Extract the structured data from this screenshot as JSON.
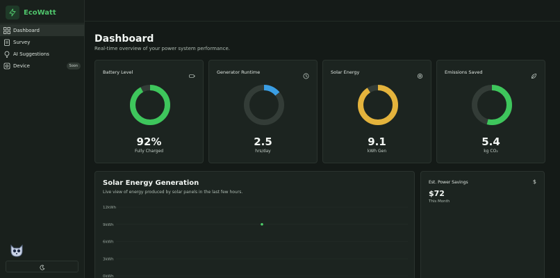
{
  "app": {
    "name": "EcoWatt"
  },
  "sidebar": {
    "items": [
      {
        "label": "Dashboard",
        "icon": "dashboard-grid-icon",
        "active": true
      },
      {
        "label": "Survey",
        "icon": "clipboard-icon",
        "active": false
      },
      {
        "label": "AI Suggestions",
        "icon": "lightbulb-icon",
        "active": false
      },
      {
        "label": "Device",
        "icon": "device-icon",
        "active": false,
        "badge": "Soon"
      }
    ],
    "theme_toggle_icon": "moon-icon"
  },
  "header": {
    "title": "Dashboard",
    "subtitle": "Real-time overview of your power system performance."
  },
  "stats": [
    {
      "title": "Battery Level",
      "icon": "battery-icon",
      "value": "92%",
      "unit": "Fully Charged",
      "fraction": 0.92,
      "color": "#3ec65c"
    },
    {
      "title": "Generator Runtime",
      "icon": "clock-icon",
      "value": "2.5",
      "unit": "hrs/day",
      "fraction": 0.14,
      "color": "#3a9ee4"
    },
    {
      "title": "Solar Energy",
      "icon": "sun-icon",
      "value": "9.1",
      "unit": "kWh Gen",
      "fraction": 0.91,
      "color": "#e4b33c"
    },
    {
      "title": "Emissions Saved",
      "icon": "leaf-icon",
      "value": "5.4",
      "unit": "kg CO₂",
      "fraction": 0.54,
      "color": "#3ec65c"
    }
  ],
  "solar_panel": {
    "title": "Solar Energy Generation",
    "subtitle": "Live view of energy produced by solar panels in the last few hours."
  },
  "chart_data": {
    "type": "scatter",
    "x": [
      0.5
    ],
    "y": [
      9
    ],
    "ylim": [
      0,
      12
    ],
    "yticks": [
      0,
      3,
      6,
      9,
      12
    ],
    "ytick_labels": [
      "0kWh",
      "3kWh",
      "6kWh",
      "9kWh",
      "12kWh"
    ],
    "xlim": [
      0,
      1
    ],
    "grid": true,
    "color": "#4fd06b"
  },
  "savings": {
    "label": "Est. Power Savings",
    "icon": "dollar-icon",
    "icon_text": "$",
    "value": "$72",
    "period": "This Month"
  }
}
